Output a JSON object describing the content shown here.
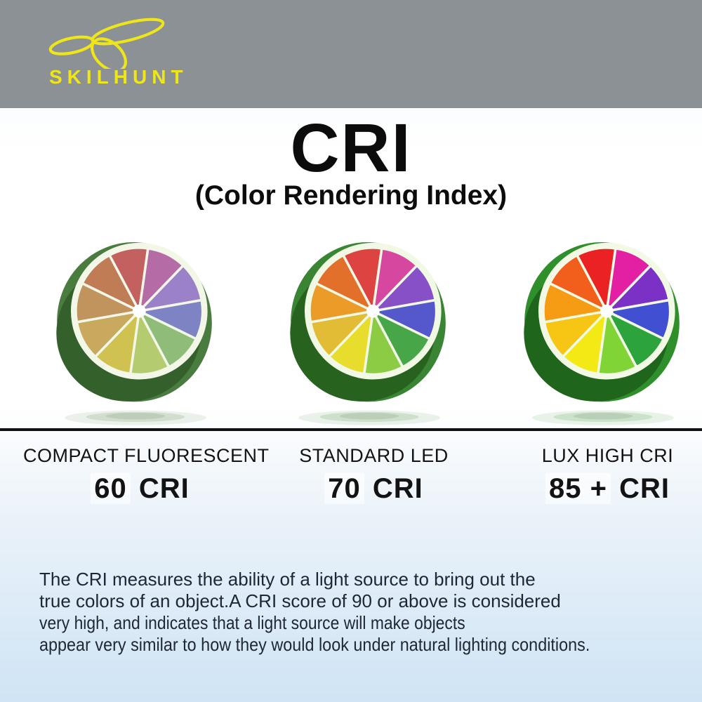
{
  "banner": {
    "brand": "SKILHUNT",
    "background_color": "#8b9194",
    "accent_color": "#eee619"
  },
  "title": {
    "main": "CRI",
    "subtitle": "(Color Rendering Index)"
  },
  "comparison": {
    "items": [
      {
        "label": "COMPACT FLUORESCENT",
        "value": "60",
        "suffix": "CRI",
        "rind": "#4a7c3f",
        "rind_dark": "#33602b",
        "pith": "#f3f7e8",
        "segment_colors": [
          "#c2615f",
          "#b56ca6",
          "#9b82c8",
          "#7e84c3",
          "#8fbc78",
          "#b5cb70",
          "#cfc251",
          "#c8a95e",
          "#c1935d",
          "#bf7c55"
        ]
      },
      {
        "label": "STANDARD LED",
        "value": "70",
        "suffix": "CRI",
        "rind": "#3a8534",
        "rind_dark": "#27621f",
        "pith": "#f1f8e4",
        "segment_colors": [
          "#dd4340",
          "#d6479f",
          "#8750c6",
          "#5558cb",
          "#47a748",
          "#8ccc45",
          "#e8dc2d",
          "#e2bc35",
          "#eb9c28",
          "#e2702a"
        ]
      },
      {
        "label": "LUX HIGH CRI",
        "value": "85 +",
        "suffix": "CRI",
        "rind": "#2f8f2b",
        "rind_dark": "#1f661c",
        "pith": "#f2fae6",
        "segment_colors": [
          "#eb2223",
          "#e320a3",
          "#7b30c6",
          "#4150d2",
          "#2da33c",
          "#80d436",
          "#f2e915",
          "#f7c513",
          "#f59b14",
          "#f25e1b"
        ]
      }
    ]
  },
  "description": {
    "lines": [
      "The CRI measures the ability of a light source to bring out the",
      "true colors of an object.A CRI score of 90 or above is considered",
      "very high, and indicates that a light source will make objects",
      "appear very similar to how they would look under natural lighting conditions."
    ]
  },
  "colors": {
    "divider": "#121212",
    "background_top": "#ffffff",
    "background_bottom": "#cfe4f5",
    "text": "#1e2733"
  }
}
